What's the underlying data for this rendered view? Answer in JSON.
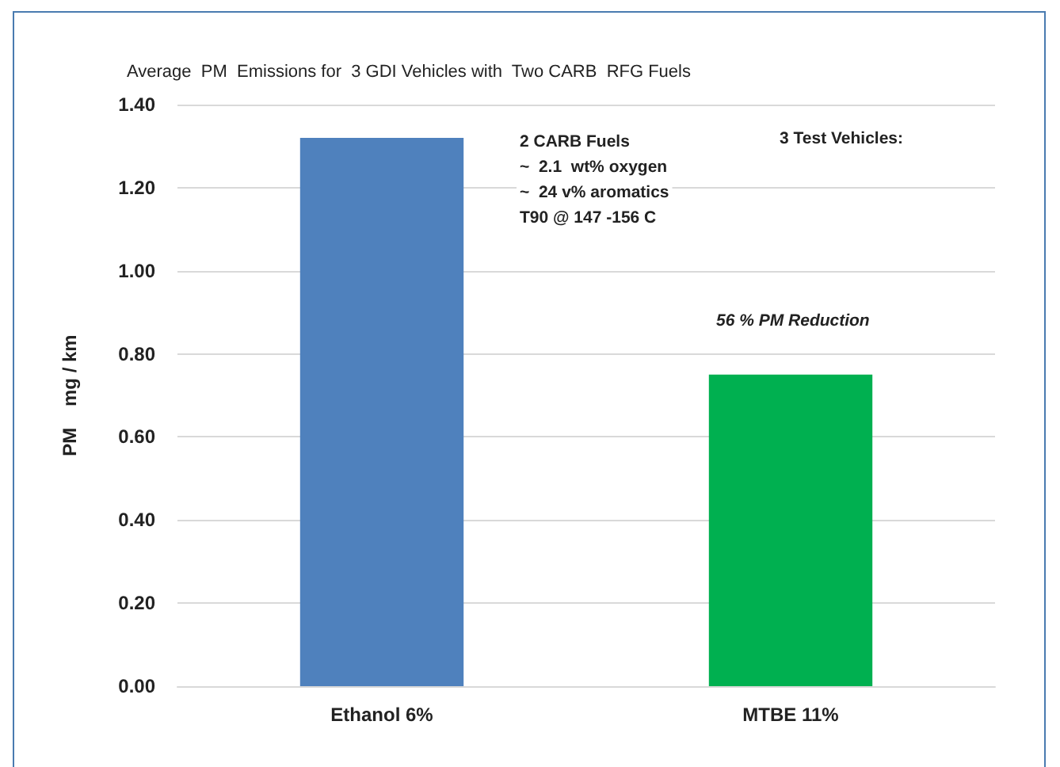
{
  "chart_data": {
    "type": "bar",
    "title": "Average  PM  Emissions for  3 GDI Vehicles with  Two CARB  RFG Fuels",
    "ylabel": "PM    mg / km",
    "categories": [
      "Ethanol 6%",
      "MTBE 11%"
    ],
    "values": [
      1.32,
      0.75
    ],
    "colors": [
      "#4f81bd",
      "#00b050"
    ],
    "ylim": [
      0,
      1.4
    ],
    "yticks": [
      {
        "value": 0,
        "label": "0.00"
      },
      {
        "value": 0.2,
        "label": "0.20"
      },
      {
        "value": 0.4,
        "label": "0.40"
      },
      {
        "value": 0.6,
        "label": "0.60"
      },
      {
        "value": 0.8,
        "label": "0.80"
      },
      {
        "value": 1.0,
        "label": "1.00"
      },
      {
        "value": 1.2,
        "label": "1.20"
      },
      {
        "value": 1.4,
        "label": "1.40"
      }
    ],
    "grid": "y",
    "annotations": [
      "2 CARB Fuels",
      "~  2.1  wt% oxygen",
      "~  24 v% aromatics",
      "T90 @ 147 -156 C",
      "3 Test Vehicles:",
      "56 % PM Reduction"
    ]
  }
}
